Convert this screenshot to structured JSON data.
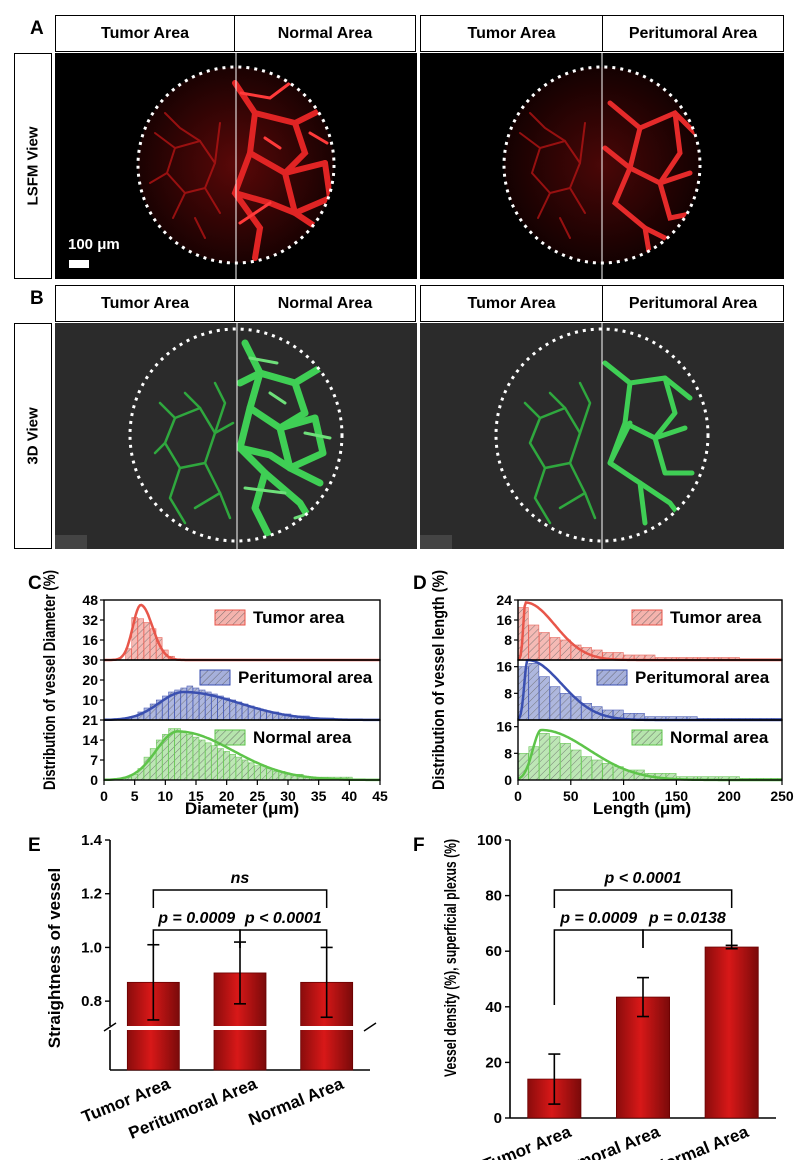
{
  "panel_labels": {
    "A": "A",
    "B": "B",
    "C": "C",
    "D": "D",
    "E": "E",
    "F": "F"
  },
  "row_a": {
    "headers": [
      "Tumor Area",
      "Normal Area",
      "Tumor Area",
      "Peritumoral Area"
    ],
    "side_label": "LSFM View",
    "scale_bar": "100 μm",
    "colors": {
      "background": "#000000",
      "vessel": "#d81b1b"
    }
  },
  "row_b": {
    "headers": [
      "Tumor Area",
      "Normal Area",
      "Tumor Area",
      "Peritumoral Area"
    ],
    "side_label": "3D View",
    "colors": {
      "background": "#2b2b2b",
      "vessel": "#2fbf45"
    }
  },
  "chart_data": [
    {
      "id": "C",
      "type": "bar",
      "ylabel": "Distribution of vessel Diameter (%)",
      "xlabel": "Diameter (μm)",
      "xlim": [
        0,
        45
      ],
      "xticks": [
        0,
        5,
        10,
        15,
        20,
        25,
        30,
        35,
        40,
        45
      ],
      "series": [
        {
          "name": "Tumor area",
          "color": "#e8564a",
          "ylim": [
            0,
            48
          ],
          "yticks": [
            16,
            32,
            48
          ],
          "bars": {
            "x": [
              4,
              5,
              6,
              7,
              8,
              9,
              10,
              11,
              12
            ],
            "values": [
              9,
              34,
              33,
              30,
              25,
              18,
              8,
              3,
              1
            ]
          },
          "fit": {
            "peak": 6,
            "height": 44,
            "sl": 1.3,
            "sr": 1.9
          }
        },
        {
          "name": "Peritumoral area",
          "color": "#3a4fb0",
          "ylim": [
            0,
            30
          ],
          "yticks": [
            10,
            20,
            30
          ],
          "bars": {
            "x": [
              4,
              5,
              6,
              7,
              8,
              9,
              10,
              11,
              12,
              13,
              14,
              15,
              16,
              17,
              18,
              19,
              20,
              21,
              22,
              23,
              24,
              25,
              26,
              27,
              28,
              29,
              30,
              31,
              32,
              33,
              34,
              35,
              36,
              37
            ],
            "values": [
              1,
              2,
              4,
              6,
              8,
              10,
              12,
              14,
              15,
              16,
              17,
              16,
              15,
              14,
              13,
              12,
              11,
              10,
              9,
              8,
              7,
              6,
              5,
              4,
              4,
              3,
              3,
              2,
              2,
              2,
              1,
              1,
              1,
              1
            ]
          },
          "fit": {
            "peak": 13,
            "height": 14,
            "sl": 4,
            "sr": 9
          }
        },
        {
          "name": "Normal area",
          "color": "#5ec44a",
          "ylim": [
            0,
            21
          ],
          "yticks": [
            7,
            14,
            21
          ],
          "bars": {
            "x": [
              4,
              5,
              6,
              7,
              8,
              9,
              10,
              11,
              12,
              13,
              14,
              15,
              16,
              17,
              18,
              19,
              20,
              21,
              22,
              23,
              24,
              25,
              26,
              27,
              28,
              29,
              30,
              31,
              32,
              33,
              34,
              35,
              36,
              37,
              38,
              39,
              40
            ],
            "values": [
              1,
              2,
              4,
              8,
              11,
              14,
              16,
              18,
              18,
              17,
              16,
              15,
              14,
              13,
              12,
              11,
              10,
              9,
              8,
              7,
              6,
              5,
              5,
              4,
              3,
              3,
              2,
              2,
              2,
              1,
              1,
              1,
              1,
              1,
              1,
              1,
              1
            ]
          },
          "fit": {
            "peak": 12,
            "height": 17,
            "sl": 3.5,
            "sr": 9
          }
        }
      ]
    },
    {
      "id": "D",
      "type": "bar",
      "ylabel": "Distribution of vessel length (%)",
      "xlabel": "Length (μm)",
      "xlim": [
        0,
        250
      ],
      "xticks": [
        0,
        50,
        100,
        150,
        200,
        250
      ],
      "series": [
        {
          "name": "Tumor area",
          "color": "#e8564a",
          "ylim": [
            0,
            24
          ],
          "yticks": [
            8,
            16,
            24
          ],
          "bars": {
            "x": [
              5,
              15,
              25,
              35,
              45,
              55,
              65,
              75,
              85,
              95,
              105,
              115,
              125,
              135,
              145,
              155,
              165,
              175,
              185,
              195,
              205,
              215,
              225,
              235,
              245
            ],
            "values": [
              21,
              14,
              11,
              9,
              8,
              6,
              5,
              4,
              3,
              3,
              2,
              2,
              2,
              1,
              1,
              1,
              1,
              1,
              1,
              1,
              1,
              0.5,
              0.5,
              0.5,
              0.5
            ]
          },
          "fit": {
            "peak": 7,
            "height": 23,
            "sl": 2,
            "sr": 28
          }
        },
        {
          "name": "Peritumoral area",
          "color": "#3a4fb0",
          "ylim": [
            0,
            18
          ],
          "yticks": [
            8,
            16
          ],
          "bars": {
            "x": [
              5,
              15,
              25,
              35,
              45,
              55,
              65,
              75,
              85,
              95,
              105,
              115,
              125,
              135,
              145,
              155,
              165,
              175,
              185,
              195,
              205,
              215,
              225,
              235,
              245
            ],
            "values": [
              16,
              17,
              13,
              10,
              8,
              7,
              5,
              4,
              3,
              3,
              2,
              2,
              1,
              1,
              1,
              1,
              1,
              0.5,
              0.5,
              0.5,
              0.5,
              0.5,
              0.5,
              0.5,
              0.5
            ]
          },
          "fit": {
            "peak": 9,
            "height": 18,
            "sl": 3,
            "sr": 32
          }
        },
        {
          "name": "Normal area",
          "color": "#5ec44a",
          "ylim": [
            0,
            18
          ],
          "yticks": [
            8,
            16
          ],
          "bars": {
            "x": [
              5,
              15,
              25,
              35,
              45,
              55,
              65,
              75,
              85,
              95,
              105,
              115,
              125,
              135,
              145,
              155,
              165,
              175,
              185,
              195,
              205,
              215,
              225,
              235,
              245
            ],
            "values": [
              8,
              10,
              14,
              13,
              11,
              9,
              7,
              6,
              5,
              4,
              3,
              3,
              2,
              2,
              2,
              1,
              1,
              1,
              1,
              1,
              1,
              0.5,
              0.5,
              0.5,
              0.5
            ]
          },
          "fit": {
            "peak": 22,
            "height": 15,
            "sl": 8,
            "sr": 45
          }
        }
      ]
    },
    {
      "id": "E",
      "type": "bar",
      "ylabel": "Straightness of vessel",
      "categories": [
        "Tumor Area",
        "Peritumoral Area",
        "Normal Area"
      ],
      "values": [
        0.87,
        0.905,
        0.87
      ],
      "errors": [
        0.14,
        0.115,
        0.13
      ],
      "ylim": [
        0.7,
        1.4
      ],
      "yticks": [
        0.8,
        1.0,
        1.2,
        1.4
      ],
      "axis_break": true,
      "annotations": [
        "p = 0.0009",
        "p < 0.0001",
        "ns"
      ],
      "bar_color": "#d81818"
    },
    {
      "id": "F",
      "type": "bar",
      "ylabel": "Vessel density (%), superficial plexus (%)",
      "categories": [
        "Tumor Area",
        "Peritumoral Area",
        "Normal Area"
      ],
      "values": [
        14,
        43.5,
        61.5
      ],
      "errors": [
        9,
        7,
        0.6
      ],
      "ylim": [
        0,
        100
      ],
      "yticks": [
        0,
        20,
        40,
        60,
        80,
        100
      ],
      "annotations": [
        "p = 0.0009",
        "p = 0.0138",
        "p < 0.0001"
      ],
      "bar_color": "#d81818"
    }
  ]
}
